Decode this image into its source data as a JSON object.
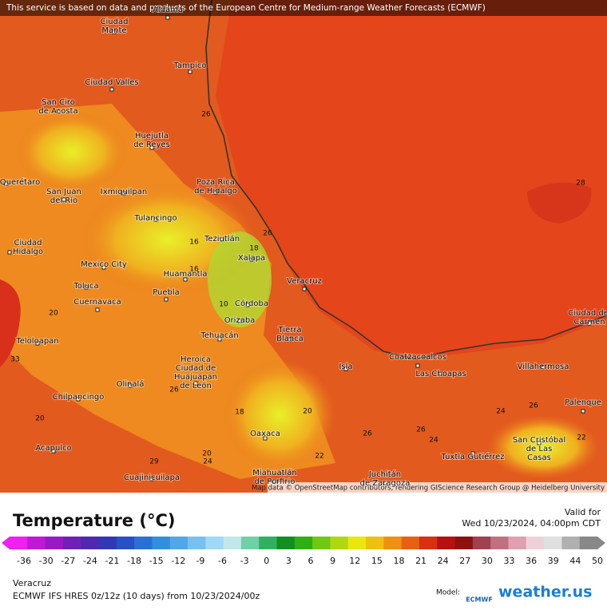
{
  "banner": "This service is based on data and products of the European Centre for Medium-range Weather Forecasts (ECMWF)",
  "map": {
    "cities": [
      [
        "Aldama"
      ],
      [
        "Ciudad",
        "Mante"
      ],
      [
        "Tampico"
      ],
      [
        "Ciudad Valles"
      ],
      [
        "San Ciro",
        "de Acosta"
      ],
      [
        "Huejutla",
        "de Reyes"
      ],
      [
        "Poza Rica",
        "de Hidalgo"
      ],
      [
        "Querétaro"
      ],
      [
        "San Juan",
        "del Río"
      ],
      [
        "Ixmiquilpan"
      ],
      [
        "Tulancingo"
      ],
      [
        "Ciudad",
        "Hidalgo"
      ],
      [
        "Teziutlán"
      ],
      [
        "Xalapa"
      ],
      [
        "Mexico City"
      ],
      [
        "Huamantla"
      ],
      [
        "Toluca"
      ],
      [
        "Puebla"
      ],
      [
        "Veracruz"
      ],
      [
        "Cuernavaca"
      ],
      [
        "Córdoba"
      ],
      [
        "Orizaba"
      ],
      [
        "Tehuacán"
      ],
      [
        "Tierra",
        "Blanca"
      ],
      [
        "Teloloapan"
      ],
      [
        "Heroica",
        "Ciudad de",
        "Huajuapan",
        "de León"
      ],
      [
        "Coatzacoalcos"
      ],
      [
        "Isla"
      ],
      [
        "Las Choapas"
      ],
      [
        "Villahermosa"
      ],
      [
        "Olinalá"
      ],
      [
        "Chilpancingo"
      ],
      [
        "Oaxaca"
      ],
      [
        "Palenque"
      ],
      [
        "Acapulco"
      ],
      [
        "San Cristóbal",
        "de Las",
        "Casas"
      ],
      [
        "Tuxtla Gutiérrez"
      ],
      [
        "Cuajinicuilapa"
      ],
      [
        "Miahuatlán",
        "de Porfirio"
      ],
      [
        "Juchitán",
        "de Zaragoza"
      ],
      [
        "Ciudad del",
        "Carmen"
      ]
    ],
    "contour_labels": [
      26,
      26,
      16,
      18,
      16,
      10,
      28,
      20,
      33,
      26,
      18,
      20,
      26,
      26,
      24,
      24,
      26,
      22,
      22,
      20,
      24,
      20,
      29
    ],
    "attribution": "Map data © OpenStreetMap contributors, rendering GIScience Research Group @ Heidelberg University"
  },
  "legend": {
    "title": "Temperature (°C)",
    "valid_label": "Valid for",
    "valid_time": "Wed 10/23/2024, 04:00pm CDT",
    "ticks": [
      -36,
      -30,
      -27,
      -24,
      -21,
      -18,
      -15,
      -12,
      -9,
      -6,
      -3,
      0,
      3,
      6,
      9,
      12,
      15,
      18,
      21,
      24,
      27,
      30,
      33,
      36,
      39,
      44,
      50
    ]
  },
  "footer": {
    "region": "Veracruz",
    "model_run": "ECMWF IFS HRES 0z/12z (10 days) from 10/23/2024/00z",
    "model_label": "Model:",
    "model_logo": "ECMWF",
    "brand": "weather.us"
  }
}
